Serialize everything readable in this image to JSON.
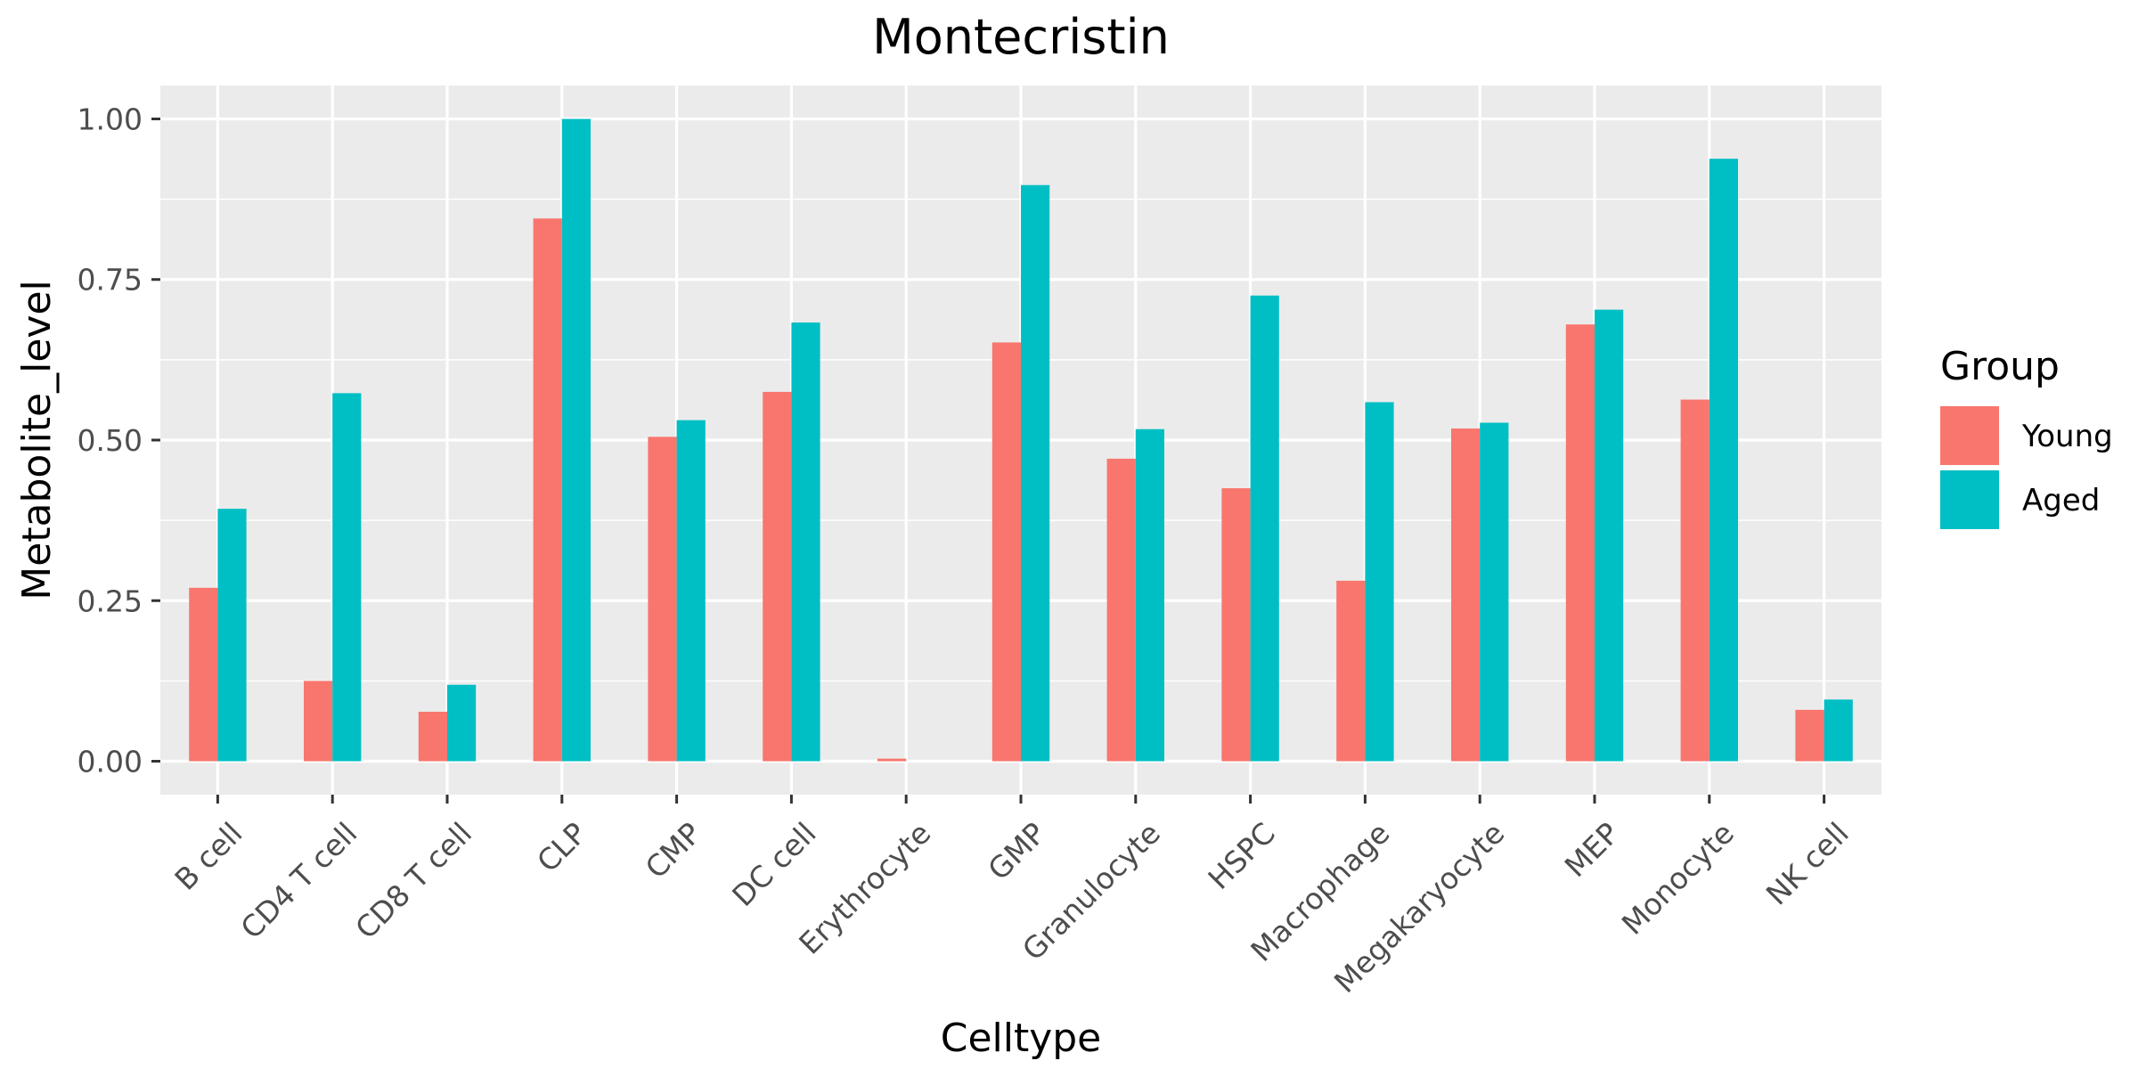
{
  "chart_data": {
    "type": "bar",
    "title": "Montecristin",
    "xlabel": "Celltype",
    "ylabel": "Metabolite_level",
    "categories": [
      "B cell",
      "CD4 T cell",
      "CD8 T cell",
      "CLP",
      "CMP",
      "DC cell",
      "Erythrocyte",
      "GMP",
      "Granulocyte",
      "HSPC",
      "Macrophage",
      "Megakaryocyte",
      "MEP",
      "Monocyte",
      "NK cell"
    ],
    "series": [
      {
        "name": "Young",
        "color": "#F8766D",
        "values": [
          0.27,
          0.125,
          0.077,
          0.845,
          0.505,
          0.575,
          0.004,
          0.652,
          0.471,
          0.425,
          0.281,
          0.518,
          0.68,
          0.563,
          0.08
        ]
      },
      {
        "name": "Aged",
        "color": "#00BFC4",
        "values": [
          0.393,
          0.573,
          0.119,
          1.0,
          0.531,
          0.683,
          0.0,
          0.897,
          0.517,
          0.725,
          0.559,
          0.527,
          0.703,
          0.938,
          0.096
        ]
      }
    ],
    "ylim": [
      -0.052,
      1.052
    ],
    "yticks": [
      0.0,
      0.25,
      0.5,
      0.75,
      1.0
    ],
    "ytick_labels": [
      "0.00",
      "0.25",
      "0.50",
      "0.75",
      "1.00"
    ],
    "grid": true,
    "legend": {
      "title": "Group",
      "position": "right"
    },
    "colors": {
      "panel_background": "#EBEBEB",
      "grid": "#FFFFFF",
      "tick": "#333333"
    }
  }
}
